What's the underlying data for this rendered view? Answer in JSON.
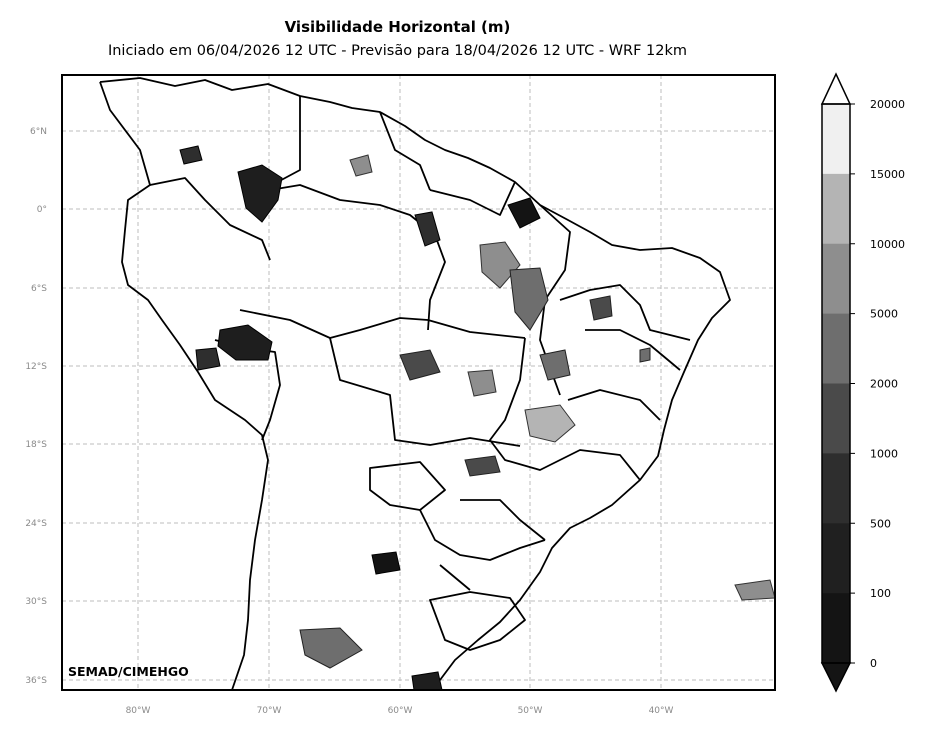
{
  "map": {
    "title": "Visibilidade Horizontal (m)",
    "subtitle": "Iniciado em 06/04/2026 12 UTC - Previsão para 18/04/2026 12 UTC - WRF 12km",
    "credit": "SEMAD/CIMEHGO",
    "lat_labels": [
      "6°N",
      "0°",
      "6°S",
      "12°S",
      "18°S",
      "24°S",
      "30°S",
      "36°S"
    ],
    "lon_labels": [
      "80°W",
      "70°W",
      "60°W",
      "50°W",
      "40°W"
    ],
    "gridlines": true,
    "region": "South America / Brazil"
  },
  "colorbar": {
    "labels": [
      "20000",
      "15000",
      "10000",
      "5000",
      "2000",
      "1000",
      "500",
      "100",
      "0"
    ],
    "colors": [
      "#f0f0f0",
      "#b4b4b4",
      "#8e8e8e",
      "#6e6e6e",
      "#4a4a4a",
      "#2e2e2e",
      "#202020",
      "#141414"
    ],
    "extend": "both"
  }
}
